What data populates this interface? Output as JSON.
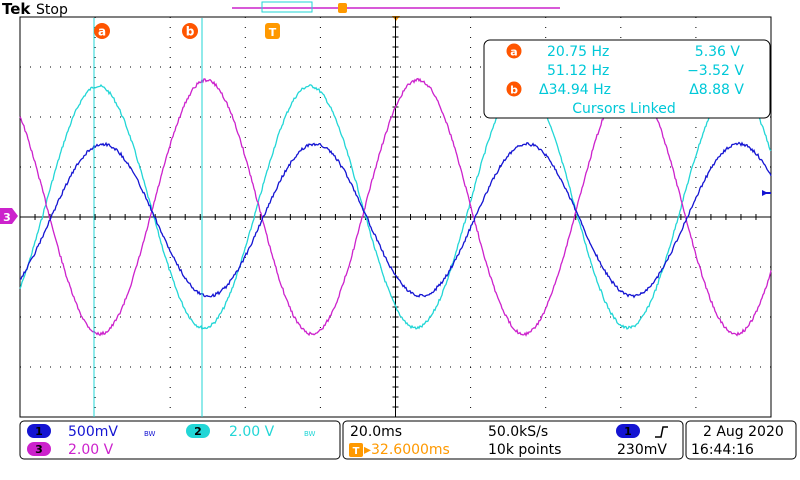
{
  "header": {
    "brand": "Tek",
    "run_state": "Stop"
  },
  "colors": {
    "ch1": "#1414d2",
    "ch2": "#22d6d6",
    "ch3": "#cc22cc",
    "cursor_marker": "#ff5500",
    "trigger": "#ff9900",
    "grid": "#000000",
    "readout_text": "#00c8d8"
  },
  "markers": {
    "cursor_a": "a",
    "cursor_b": "b",
    "trigger": "T",
    "ch3_ground": "3"
  },
  "cursor_readout": {
    "a_freq": "20.75 Hz",
    "a_volt": "5.36 V",
    "b_freq": "51.12 Hz",
    "b_volt": "−3.52 V",
    "delta_freq": "Δ34.94 Hz",
    "delta_volt": "Δ8.88 V",
    "linked": "Cursors Linked"
  },
  "channels": {
    "ch1": {
      "badge": "1",
      "scale": "500mV",
      "bw": "BW"
    },
    "ch2": {
      "badge": "2",
      "scale": "2.00 V",
      "bw": "BW"
    },
    "ch3": {
      "badge": "3",
      "scale": "2.00 V"
    }
  },
  "timebase": {
    "scale": "20.0ms",
    "sample_rate": "50.0kS/s",
    "trigger_pos": "▸32.6000ms",
    "record_length": "10k points"
  },
  "trigger": {
    "source_badge": "1",
    "slope_icon": "rising-edge-icon",
    "level": "230mV"
  },
  "datetime": {
    "date": "2 Aug 2020",
    "time": "16:44:16"
  }
}
